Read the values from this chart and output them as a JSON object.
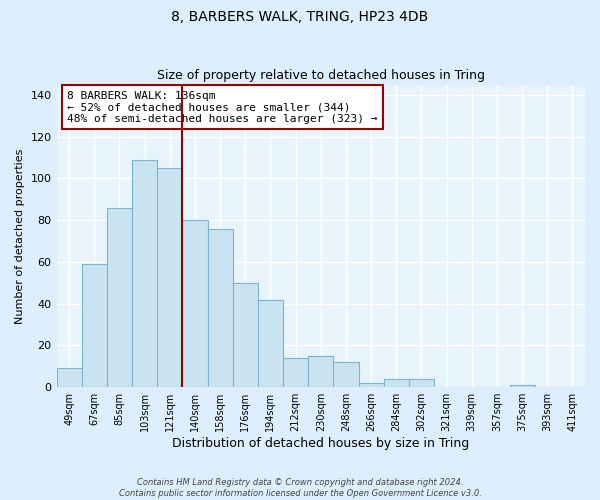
{
  "title": "8, BARBERS WALK, TRING, HP23 4DB",
  "subtitle": "Size of property relative to detached houses in Tring",
  "xlabel": "Distribution of detached houses by size in Tring",
  "ylabel": "Number of detached properties",
  "bar_labels": [
    "49sqm",
    "67sqm",
    "85sqm",
    "103sqm",
    "121sqm",
    "140sqm",
    "158sqm",
    "176sqm",
    "194sqm",
    "212sqm",
    "230sqm",
    "248sqm",
    "266sqm",
    "284sqm",
    "302sqm",
    "321sqm",
    "339sqm",
    "357sqm",
    "375sqm",
    "393sqm",
    "411sqm"
  ],
  "bar_values": [
    9,
    59,
    86,
    109,
    105,
    80,
    76,
    50,
    42,
    14,
    15,
    12,
    2,
    4,
    4,
    0,
    0,
    0,
    1,
    0,
    0
  ],
  "bar_color": "#c9e3f0",
  "bar_edge_color": "#7ab5d4",
  "annotation_text": "8 BARBERS WALK: 136sqm\n← 52% of detached houses are smaller (344)\n48% of semi-detached houses are larger (323) →",
  "vline_x_index": 5,
  "vline_color": "#990000",
  "ylim": [
    0,
    145
  ],
  "yticks": [
    0,
    20,
    40,
    60,
    80,
    100,
    120,
    140
  ],
  "annotation_box_color": "#ffffff",
  "annotation_box_edge": "#990000",
  "footnote1": "Contains HM Land Registry data © Crown copyright and database right 2024.",
  "footnote2": "Contains public sector information licensed under the Open Government Licence v3.0.",
  "background_color": "#ddeeff",
  "plot_bg_color": "#e8f4fb"
}
